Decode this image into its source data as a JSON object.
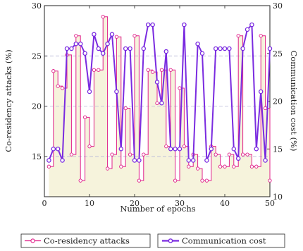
{
  "chart_data": {
    "type": "line",
    "xlabel": "Number of epochs",
    "ylabel_left": "Co-residency attacks (%)",
    "ylabel_right": "Communication cost (%)",
    "xlim": [
      0,
      50
    ],
    "ylim_left": [
      11,
      30
    ],
    "ylim_right": [
      10,
      30
    ],
    "x_ticks": [
      0,
      10,
      20,
      30,
      40,
      50
    ],
    "y_ticks_left": [
      15,
      20,
      25,
      30
    ],
    "y_ticks_right": [
      10,
      15,
      20,
      25,
      30
    ],
    "grid": "horizontal dashed",
    "legend_position": "bottom",
    "colors": {
      "attacks": "#e0208a",
      "cost": "#7a2be0",
      "fill": "#f6f3dc",
      "grid": "#b8b8d8"
    },
    "series": [
      {
        "name": "Co-residency attacks",
        "axis": "left",
        "style": "step",
        "x": [
          1,
          2,
          3,
          4,
          5,
          6,
          7,
          8,
          9,
          10,
          11,
          12,
          13,
          14,
          15,
          16,
          17,
          18,
          19,
          20,
          21,
          22,
          23,
          24,
          25,
          26,
          27,
          28,
          29,
          30,
          31,
          32,
          33,
          34,
          35,
          36,
          37,
          38,
          39,
          40,
          41,
          42,
          43,
          44,
          45,
          46,
          47,
          48,
          49,
          50
        ],
        "values": [
          14.0,
          23.5,
          22.0,
          21.8,
          25.1,
          15.2,
          27.0,
          12.6,
          18.9,
          16.0,
          23.6,
          23.6,
          28.9,
          13.8,
          15.2,
          26.9,
          14.0,
          19.8,
          15.2,
          27.0,
          12.6,
          15.2,
          23.6,
          23.4,
          20.3,
          23.6,
          16.0,
          23.6,
          12.6,
          21.8,
          16.0,
          14.0,
          15.2,
          13.8,
          12.6,
          12.6,
          16.0,
          15.2,
          14.0,
          14.0,
          15.2,
          14.0,
          27.0,
          15.2,
          15.2,
          14.0,
          14.0,
          27.0,
          19.8,
          12.6
        ]
      },
      {
        "name": "Communication cost",
        "axis": "right",
        "style": "line",
        "x": [
          1,
          2,
          3,
          4,
          5,
          6,
          7,
          8,
          9,
          10,
          11,
          12,
          13,
          14,
          15,
          16,
          17,
          18,
          19,
          20,
          21,
          22,
          23,
          24,
          25,
          26,
          27,
          28,
          29,
          30,
          31,
          32,
          33,
          34,
          35,
          36,
          37,
          38,
          39,
          40,
          41,
          42,
          43,
          44,
          45,
          46,
          47,
          48,
          49,
          50
        ],
        "values": [
          13.8,
          15.0,
          15.0,
          13.8,
          25.5,
          25.5,
          26.0,
          26.0,
          25.0,
          21.0,
          27.0,
          25.5,
          25.0,
          26.0,
          27.0,
          21.0,
          15.0,
          25.5,
          25.5,
          13.8,
          13.8,
          25.5,
          28.0,
          28.0,
          22.0,
          19.8,
          25.2,
          15.0,
          15.0,
          15.0,
          28.0,
          13.8,
          13.8,
          26.0,
          25.0,
          13.8,
          15.0,
          25.5,
          25.5,
          25.5,
          25.5,
          15.0,
          14.0,
          25.5,
          27.5,
          28.0,
          15.0,
          21.0,
          13.8,
          25.5
        ]
      }
    ]
  }
}
